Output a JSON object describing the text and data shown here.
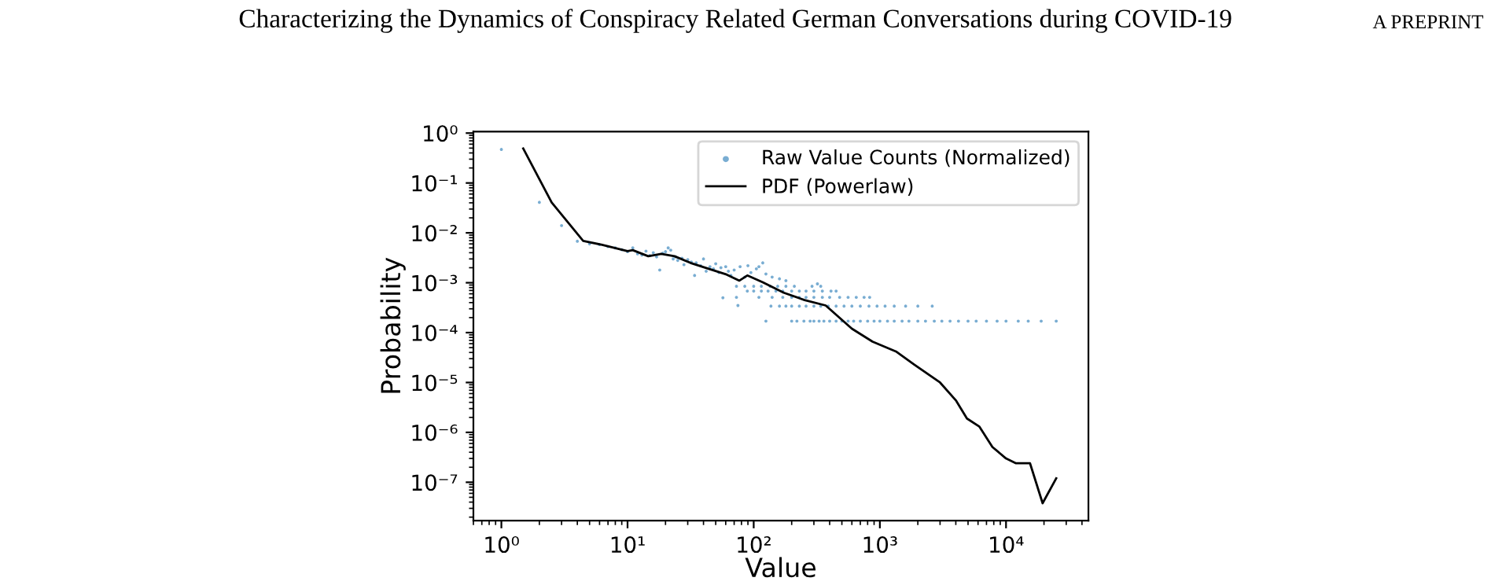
{
  "chart_data": {
    "type": "scatter",
    "title": "Characterizing the Dynamics of Conspiracy Related German Conversations during COVID-19",
    "annotations": [
      "A PREPRINT"
    ],
    "xlabel": "Value",
    "ylabel": "Probability",
    "log": "xy",
    "xlim": [
      0.6,
      45000
    ],
    "ylim": [
      1.7e-08,
      1.07
    ],
    "xticks": [
      {
        "value": 1,
        "label": "10⁰"
      },
      {
        "value": 10,
        "label": "10¹"
      },
      {
        "value": 100,
        "label": "10²"
      },
      {
        "value": 1000,
        "label": "10³"
      },
      {
        "value": 10000,
        "label": "10⁴"
      }
    ],
    "yticks": [
      {
        "value": 1e-07,
        "label": "10⁻⁷"
      },
      {
        "value": 1e-06,
        "label": "10⁻⁶"
      },
      {
        "value": 1e-05,
        "label": "10⁻⁵"
      },
      {
        "value": 0.0001,
        "label": "10⁻⁴"
      },
      {
        "value": 0.001,
        "label": "10⁻³"
      },
      {
        "value": 0.01,
        "label": "10⁻²"
      },
      {
        "value": 0.1,
        "label": "10⁻¹"
      },
      {
        "value": 1,
        "label": "10⁰"
      }
    ],
    "grid": false,
    "legend": "top right",
    "series": [
      {
        "name": "Raw Value Counts (Normalized)",
        "marker": "circle",
        "color": "#1f77b4",
        "x": [
          1,
          2,
          3,
          4,
          5,
          6,
          7,
          8,
          9,
          10,
          11,
          12,
          13,
          14,
          15,
          16,
          17,
          18,
          19,
          20,
          21,
          22,
          23,
          24,
          25,
          27,
          28,
          30,
          32,
          34,
          35,
          38,
          40,
          42,
          45,
          48,
          50,
          53,
          55,
          57,
          60,
          63,
          66,
          70,
          75,
          78,
          85,
          90,
          95,
          105,
          110,
          118,
          125,
          140,
          160,
          180,
          320,
          125,
          200,
          220,
          250,
          280,
          300,
          330,
          360,
          400,
          450,
          500,
          560,
          620,
          700,
          800,
          900,
          1000,
          1150,
          1300,
          1500,
          1700,
          2000,
          2300,
          2700,
          3100,
          3600,
          4200,
          5000,
          5800,
          7000,
          8500,
          10000,
          12500,
          15000,
          19000,
          25000,
          137,
          160,
          180,
          200,
          230,
          260,
          300,
          340,
          390,
          450,
          520,
          600,
          700,
          820,
          950,
          1100,
          1300,
          1600,
          2000,
          2600,
          73,
          110,
          140,
          170,
          200,
          230,
          260,
          300,
          350,
          400,
          480,
          560,
          650,
          750,
          830,
          89,
          100,
          115,
          130,
          150,
          170,
          200,
          230,
          260,
          300,
          350,
          410,
          450,
          73,
          85,
          100,
          115,
          135,
          155,
          180,
          210,
          290,
          340
        ],
        "values": [
          0.47,
          0.041,
          0.014,
          0.0068,
          0.006,
          0.0058,
          0.0053,
          0.005,
          0.0046,
          0.0042,
          0.005,
          0.0038,
          0.0036,
          0.0043,
          0.0035,
          0.004,
          0.0033,
          0.0018,
          0.0039,
          0.0042,
          0.005,
          0.0045,
          0.003,
          0.0033,
          0.0028,
          0.0031,
          0.0023,
          0.0029,
          0.0026,
          0.0014,
          0.0025,
          0.0022,
          0.003,
          0.0017,
          0.0021,
          0.0019,
          0.0024,
          0.0016,
          0.002,
          0.0005,
          0.0021,
          0.0017,
          0.0014,
          0.0018,
          0.00035,
          0.0021,
          0.0013,
          0.0022,
          0.0016,
          0.0019,
          0.0021,
          0.0025,
          0.0015,
          0.0013,
          0.0012,
          0.0011,
          0.00095,
          0.00017,
          0.00017,
          0.00017,
          0.00017,
          0.00017,
          0.00017,
          0.00017,
          0.00017,
          0.00017,
          0.00017,
          0.00017,
          0.00017,
          0.00017,
          0.00017,
          0.00017,
          0.00017,
          0.00017,
          0.00017,
          0.00017,
          0.00017,
          0.00017,
          0.00017,
          0.00017,
          0.00017,
          0.00017,
          0.00017,
          0.00017,
          0.00017,
          0.00017,
          0.00017,
          0.00017,
          0.00017,
          0.00017,
          0.00017,
          0.00017,
          0.00017,
          0.00034,
          0.00034,
          0.00034,
          0.00034,
          0.00034,
          0.00034,
          0.00034,
          0.00034,
          0.00034,
          0.00034,
          0.00034,
          0.00034,
          0.00034,
          0.00034,
          0.00034,
          0.00034,
          0.00034,
          0.00034,
          0.00034,
          0.00034,
          0.00051,
          0.00051,
          0.00051,
          0.00051,
          0.00051,
          0.00051,
          0.00051,
          0.00051,
          0.00051,
          0.00051,
          0.00051,
          0.00051,
          0.00051,
          0.00051,
          0.00051,
          0.00068,
          0.00068,
          0.00068,
          0.00068,
          0.00068,
          0.00068,
          0.00068,
          0.00068,
          0.00068,
          0.00068,
          0.00068,
          0.00068,
          0.00068,
          0.00085,
          0.00085,
          0.00085,
          0.00085,
          0.00085,
          0.00085,
          0.00085,
          0.00085,
          0.00085,
          0.00085
        ]
      },
      {
        "name": "PDF (Powerlaw)",
        "type": "line",
        "marker": "none",
        "line_style": "solid",
        "color": "#000000",
        "x": [
          1.49,
          2.5,
          4.45,
          6.2,
          10,
          11,
          14.6,
          18.5,
          23.6,
          31.5,
          44,
          61,
          77,
          89,
          118,
          173,
          253,
          372,
          600,
          875,
          1340,
          1870,
          3000,
          4000,
          4900,
          6160,
          7800,
          10000,
          12000,
          15500,
          19500,
          25000
        ],
        "values": [
          0.49,
          0.041,
          0.0069,
          0.0058,
          0.0043,
          0.0045,
          0.0034,
          0.0038,
          0.0034,
          0.0025,
          0.0019,
          0.00146,
          0.0011,
          0.0014,
          0.00102,
          0.00063,
          0.00045,
          0.00035,
          0.00012,
          6.6e-05,
          4.2e-05,
          2.3e-05,
          1e-05,
          4.4e-06,
          1.9e-06,
          1.3e-06,
          5.1e-07,
          3e-07,
          2.4e-07,
          2.4e-07,
          3.8e-08,
          1.2e-07
        ]
      }
    ]
  }
}
